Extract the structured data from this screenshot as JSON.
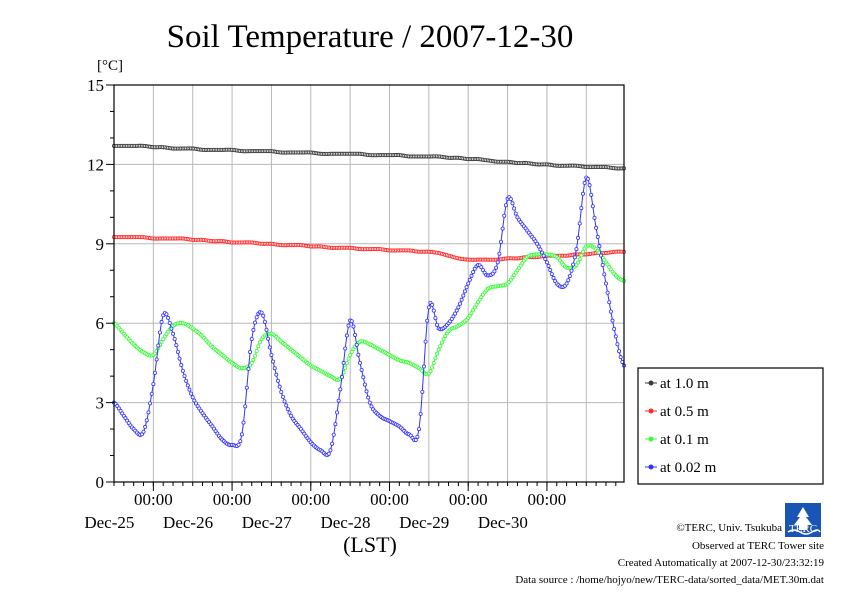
{
  "chart_data": {
    "type": "line",
    "title": "Soil Temperature / 2007-12-30",
    "ylabel": "[°C]",
    "xlabel": "(LST)",
    "ylim": [
      0,
      15
    ],
    "yticks": [
      "0",
      "3",
      "6",
      "9",
      "12",
      "15"
    ],
    "x_tick_labels": [
      {
        "time": "00:00",
        "date": "Dec-25"
      },
      {
        "time": "00:00",
        "date": "Dec-26"
      },
      {
        "time": "00:00",
        "date": "Dec-27"
      },
      {
        "time": "00:00",
        "date": "Dec-28"
      },
      {
        "time": "00:00",
        "date": "Dec-29"
      },
      {
        "time": "00:00",
        "date": "Dec-30"
      }
    ],
    "grid": true,
    "legend_position": "right",
    "x": [
      "12-24 12:00",
      "12-24 15:00",
      "12-24 18:00",
      "12-24 21:00",
      "12-25 00:00",
      "12-25 03:00",
      "12-25 06:00",
      "12-25 09:00",
      "12-25 12:00",
      "12-25 15:00",
      "12-25 18:00",
      "12-25 21:00",
      "12-26 00:00",
      "12-26 03:00",
      "12-26 06:00",
      "12-26 09:00",
      "12-26 12:00",
      "12-26 15:00",
      "12-26 18:00",
      "12-26 21:00",
      "12-27 00:00",
      "12-27 03:00",
      "12-27 06:00",
      "12-27 09:00",
      "12-27 12:00",
      "12-27 15:00",
      "12-27 18:00",
      "12-27 21:00",
      "12-28 00:00",
      "12-28 03:00",
      "12-28 06:00",
      "12-28 09:00",
      "12-28 12:00",
      "12-28 15:00",
      "12-28 18:00",
      "12-28 21:00",
      "12-29 00:00",
      "12-29 03:00",
      "12-29 06:00",
      "12-29 09:00",
      "12-29 12:00",
      "12-29 15:00",
      "12-29 18:00",
      "12-29 21:00",
      "12-30 00:00",
      "12-30 03:00",
      "12-30 06:00",
      "12-30 09:00",
      "12-30 12:00",
      "12-30 15:00",
      "12-30 18:00",
      "12-30 21:00",
      "12-30 23:30"
    ],
    "series": [
      {
        "name": "at 1.0 m",
        "color": "#3a3a3a",
        "values": [
          12.7,
          12.7,
          12.7,
          12.7,
          12.65,
          12.65,
          12.6,
          12.6,
          12.6,
          12.55,
          12.55,
          12.55,
          12.55,
          12.5,
          12.5,
          12.5,
          12.5,
          12.45,
          12.45,
          12.45,
          12.45,
          12.4,
          12.4,
          12.4,
          12.4,
          12.4,
          12.35,
          12.35,
          12.35,
          12.35,
          12.3,
          12.3,
          12.3,
          12.3,
          12.25,
          12.25,
          12.2,
          12.2,
          12.15,
          12.1,
          12.1,
          12.05,
          12.05,
          12.0,
          12.0,
          11.95,
          11.95,
          11.95,
          11.9,
          11.9,
          11.9,
          11.85,
          11.85
        ]
      },
      {
        "name": "at 0.5 m",
        "color": "#ff2a2a",
        "values": [
          9.25,
          9.25,
          9.25,
          9.25,
          9.2,
          9.2,
          9.2,
          9.2,
          9.15,
          9.15,
          9.1,
          9.1,
          9.05,
          9.05,
          9.05,
          9.0,
          9.0,
          8.95,
          8.95,
          8.95,
          8.9,
          8.9,
          8.85,
          8.85,
          8.85,
          8.8,
          8.8,
          8.8,
          8.75,
          8.75,
          8.75,
          8.7,
          8.7,
          8.65,
          8.55,
          8.45,
          8.4,
          8.4,
          8.4,
          8.4,
          8.45,
          8.45,
          8.5,
          8.5,
          8.55,
          8.55,
          8.55,
          8.6,
          8.6,
          8.65,
          8.65,
          8.7,
          8.7
        ]
      },
      {
        "name": "at 0.1 m",
        "color": "#33ff33",
        "values": [
          6.0,
          5.6,
          5.2,
          4.9,
          4.8,
          5.4,
          5.9,
          6.0,
          5.8,
          5.5,
          5.1,
          4.8,
          4.5,
          4.3,
          4.5,
          5.4,
          5.6,
          5.3,
          5.0,
          4.7,
          4.4,
          4.2,
          4.0,
          3.9,
          4.8,
          5.3,
          5.2,
          5.0,
          4.8,
          4.6,
          4.5,
          4.3,
          4.1,
          5.0,
          5.7,
          5.9,
          6.2,
          6.8,
          7.3,
          7.4,
          7.5,
          8.0,
          8.5,
          8.6,
          8.6,
          8.5,
          8.1,
          8.2,
          8.9,
          8.8,
          8.3,
          7.8,
          7.6
        ]
      },
      {
        "name": "at 0.02 m",
        "color": "#3333ff",
        "values": [
          3.0,
          2.5,
          2.0,
          1.9,
          3.7,
          6.3,
          5.6,
          4.2,
          3.2,
          2.6,
          2.1,
          1.6,
          1.4,
          1.8,
          5.4,
          6.4,
          4.8,
          3.4,
          2.5,
          2.0,
          1.5,
          1.2,
          1.2,
          3.5,
          6.1,
          4.5,
          3.0,
          2.5,
          2.3,
          2.1,
          1.8,
          2.0,
          6.6,
          5.8,
          6.0,
          6.6,
          7.5,
          8.2,
          7.8,
          8.3,
          10.7,
          10.0,
          9.5,
          9.0,
          8.3,
          7.5,
          7.5,
          8.8,
          11.5,
          9.6,
          7.5,
          5.5,
          4.4
        ]
      }
    ]
  },
  "credits": {
    "copyright": "©TERC, Univ. Tsukuba",
    "observed": "Observed at TERC Tower site",
    "created": "Created Automatically at 2007-12-30/23:32:19",
    "source": "Data source : /home/hojyo/new/TERC-data/sorted_data/MET.30m.dat",
    "logo_text": "TERC"
  }
}
